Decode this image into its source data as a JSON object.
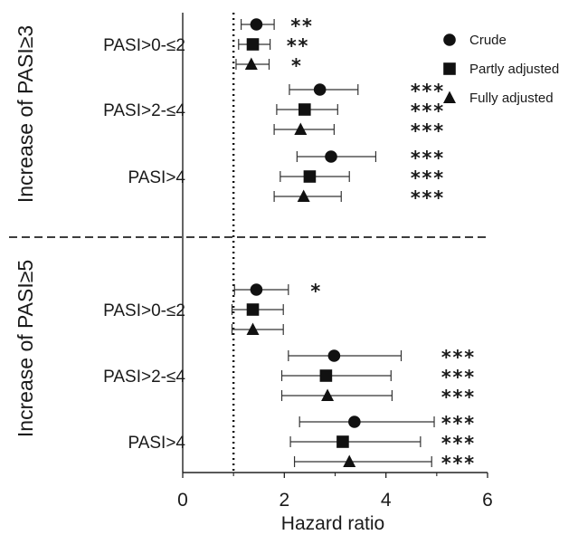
{
  "chart_data": {
    "type": "forest",
    "xlabel": "Hazard ratio",
    "xlim": [
      0,
      6
    ],
    "xticks": [
      0,
      2,
      4,
      6
    ],
    "reference_line": 1,
    "legend": [
      {
        "name": "Crude",
        "marker": "circle"
      },
      {
        "name": "Partly adjusted",
        "marker": "square"
      },
      {
        "name": "Fully adjusted",
        "marker": "triangle"
      }
    ],
    "legend_position": "top-right",
    "groups": [
      {
        "label": "Increase of PASI≥3",
        "categories": [
          {
            "label": "PASI>0-≤2",
            "estimates": [
              {
                "model": "Crude",
                "hr": 1.45,
                "lo": 1.15,
                "hi": 1.8,
                "sig": "**"
              },
              {
                "model": "Partly adjusted",
                "hr": 1.38,
                "lo": 1.1,
                "hi": 1.72,
                "sig": "**"
              },
              {
                "model": "Fully adjusted",
                "hr": 1.35,
                "lo": 1.05,
                "hi": 1.7,
                "sig": "*"
              }
            ]
          },
          {
            "label": "PASI>2-≤4",
            "estimates": [
              {
                "model": "Crude",
                "hr": 2.7,
                "lo": 2.1,
                "hi": 3.45,
                "sig": "***"
              },
              {
                "model": "Partly adjusted",
                "hr": 2.4,
                "lo": 1.85,
                "hi": 3.05,
                "sig": "***"
              },
              {
                "model": "Fully adjusted",
                "hr": 2.32,
                "lo": 1.8,
                "hi": 2.98,
                "sig": "***"
              }
            ]
          },
          {
            "label": "PASI>4",
            "estimates": [
              {
                "model": "Crude",
                "hr": 2.92,
                "lo": 2.25,
                "hi": 3.8,
                "sig": "***"
              },
              {
                "model": "Partly adjusted",
                "hr": 2.5,
                "lo": 1.92,
                "hi": 3.28,
                "sig": "***"
              },
              {
                "model": "Fully adjusted",
                "hr": 2.38,
                "lo": 1.8,
                "hi": 3.12,
                "sig": "***"
              }
            ]
          }
        ]
      },
      {
        "label": "Increase of PASI≥5",
        "categories": [
          {
            "label": "PASI>0-≤2",
            "estimates": [
              {
                "model": "Crude",
                "hr": 1.45,
                "lo": 1.02,
                "hi": 2.08,
                "sig": "*"
              },
              {
                "model": "Partly adjusted",
                "hr": 1.38,
                "lo": 0.97,
                "hi": 1.98,
                "sig": ""
              },
              {
                "model": "Fully adjusted",
                "hr": 1.38,
                "lo": 0.97,
                "hi": 1.98,
                "sig": ""
              }
            ]
          },
          {
            "label": "PASI>2-≤4",
            "estimates": [
              {
                "model": "Crude",
                "hr": 2.98,
                "lo": 2.08,
                "hi": 4.3,
                "sig": "***"
              },
              {
                "model": "Partly adjusted",
                "hr": 2.82,
                "lo": 1.95,
                "hi": 4.1,
                "sig": "***"
              },
              {
                "model": "Fully adjusted",
                "hr": 2.85,
                "lo": 1.95,
                "hi": 4.12,
                "sig": "***"
              }
            ]
          },
          {
            "label": "PASI>4",
            "estimates": [
              {
                "model": "Crude",
                "hr": 3.38,
                "lo": 2.3,
                "hi": 4.95,
                "sig": "***"
              },
              {
                "model": "Partly adjusted",
                "hr": 3.15,
                "lo": 2.12,
                "hi": 4.68,
                "sig": "***"
              },
              {
                "model": "Fully adjusted",
                "hr": 3.28,
                "lo": 2.2,
                "hi": 4.9,
                "sig": "***"
              }
            ]
          }
        ]
      }
    ]
  }
}
